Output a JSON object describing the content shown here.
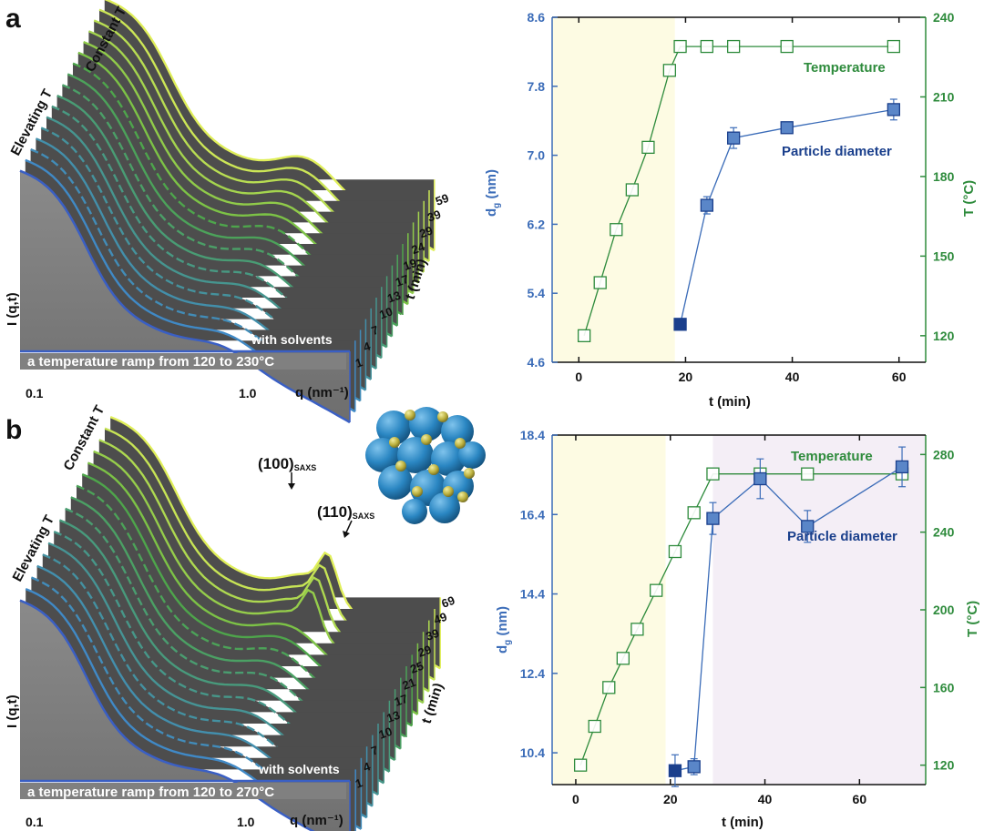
{
  "colors": {
    "temperature": "#2e8b3c",
    "diameter": "#3b6cb8",
    "diameter_dark": "#1a3f8c",
    "yellow_zone": "#fdfbe3",
    "purple_zone": "#f4eef6",
    "waterfall_fill": "#4d4d4d",
    "front_fill": "#7d7d7d",
    "baseline": "#3a5fc4",
    "constant_line": "#e0ef5a"
  },
  "panels": {
    "a": {
      "label": "a",
      "waterfall": {
        "elevating_label": "Elevating T",
        "constant_label": "Constant T",
        "y_label": "I (q,t)",
        "x_label": "q (nm⁻¹)",
        "x_ticks": [
          "0.1",
          "1.0"
        ],
        "t_label": "t (min)",
        "t_ticks": [
          "1",
          "4",
          "7",
          "10",
          "13",
          "17",
          "19",
          "24",
          "29",
          "39",
          "59"
        ],
        "solvent_note": "with solvents",
        "ramp_note": "a temperature ramp from 120 to 230°C",
        "n_layers": 17,
        "n_constant": 6,
        "peak": 0
      },
      "chart_data": {
        "type": "scatter",
        "x_label": "t (min)",
        "y_left_label": "dg (nm)",
        "y_right_label": "T (°C)",
        "xlim": [
          -5,
          65
        ],
        "ylim_left": [
          4.6,
          8.6
        ],
        "ylim_right": [
          110,
          240
        ],
        "x_ticks": [
          0,
          20,
          40,
          60
        ],
        "y_left_ticks": [
          "4.6",
          "5.4",
          "6.2",
          "7.0",
          "7.8",
          "8.6"
        ],
        "y_right_ticks": [
          120,
          150,
          180,
          210,
          240
        ],
        "shaded_regions": [
          {
            "from": -5,
            "to": 18,
            "color": "yellow"
          }
        ],
        "series": [
          {
            "name": "Temperature",
            "axis": "right",
            "x": [
              1,
              4,
              7,
              10,
              13,
              17,
              19,
              24,
              29,
              39,
              59
            ],
            "y": [
              120,
              140,
              160,
              175,
              191,
              220,
              229,
              229,
              229,
              229,
              229
            ]
          },
          {
            "name": "Particle diameter",
            "axis": "left",
            "x": [
              19,
              24,
              29,
              39,
              59
            ],
            "y": [
              5.04,
              6.42,
              7.2,
              7.32,
              7.53
            ],
            "err": [
              0,
              0.1,
              0.12,
              0.06,
              0.12
            ]
          }
        ],
        "annotations": [
          {
            "text": "Temperature",
            "series": "Temperature"
          },
          {
            "text": "Particle diameter",
            "series": "Particle diameter"
          }
        ]
      }
    },
    "b": {
      "label": "b",
      "waterfall": {
        "elevating_label": "Elevating T",
        "constant_label": "Constant T",
        "y_label": "I (q,t)",
        "x_label": "q (nm⁻¹)",
        "x_ticks": [
          "0.1",
          "1.0"
        ],
        "t_label": "t (min)",
        "t_ticks": [
          "1",
          "4",
          "7",
          "10",
          "13",
          "17",
          "21",
          "25",
          "29",
          "39",
          "49",
          "69"
        ],
        "solvent_note": "with solvents",
        "ramp_note": "a temperature ramp from 120 to 270°C",
        "peak_100": "(100)",
        "peak_110": "(110)",
        "peak_sub": "SAXS",
        "n_layers": 17,
        "n_constant": 5,
        "peak": 1
      },
      "chart_data": {
        "type": "scatter",
        "x_label": "t (min)",
        "y_left_label": "dg (nm)",
        "y_right_label": "T (°C)",
        "xlim": [
          -5,
          74
        ],
        "ylim_left": [
          9.6,
          18.4
        ],
        "ylim_right": [
          110,
          290
        ],
        "x_ticks": [
          0,
          20,
          40,
          60
        ],
        "y_left_ticks": [
          "10.4",
          "12.4",
          "14.4",
          "16.4",
          "18.4"
        ],
        "y_right_ticks": [
          120,
          160,
          200,
          240,
          280
        ],
        "shaded_regions": [
          {
            "from": -5,
            "to": 19,
            "color": "yellow"
          },
          {
            "from": 29,
            "to": 74,
            "color": "purple"
          }
        ],
        "series": [
          {
            "name": "Temperature",
            "axis": "right",
            "x": [
              1,
              4,
              7,
              10,
              13,
              17,
              21,
              25,
              29,
              39,
              49,
              69
            ],
            "y": [
              120,
              140,
              160,
              175,
              190,
              210,
              230,
              250,
              270,
              270,
              270,
              270
            ]
          },
          {
            "name": "Particle diameter",
            "axis": "left",
            "x": [
              21,
              25,
              29,
              39,
              49,
              69
            ],
            "y": [
              9.95,
              10.05,
              16.3,
              17.3,
              16.1,
              17.6
            ],
            "err": [
              0.4,
              0.2,
              0.4,
              0.5,
              0.4,
              0.5
            ]
          }
        ],
        "annotations": [
          {
            "text": "Temperature",
            "series": "Temperature"
          },
          {
            "text": "Particle diameter",
            "series": "Particle diameter"
          }
        ]
      }
    }
  }
}
